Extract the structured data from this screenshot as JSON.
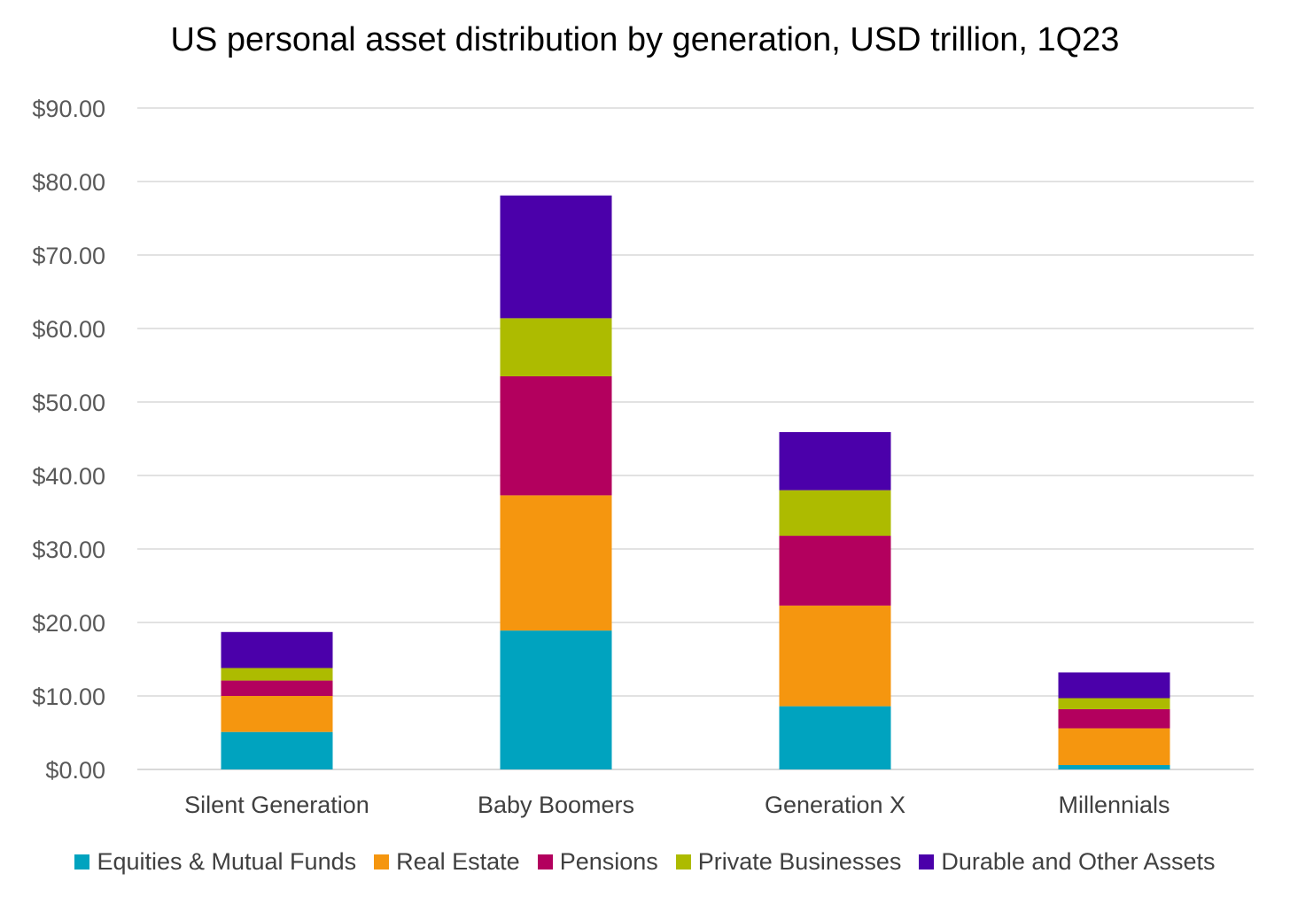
{
  "chart_data": {
    "type": "bar",
    "stacked": true,
    "title": "US personal asset distribution by generation, USD trillion, 1Q23",
    "xlabel": "",
    "ylabel": "",
    "ylim": [
      0,
      90
    ],
    "yticks": [
      0,
      10,
      20,
      30,
      40,
      50,
      60,
      70,
      80,
      90
    ],
    "ytick_labels": [
      "$0.00",
      "$10.00",
      "$20.00",
      "$30.00",
      "$40.00",
      "$50.00",
      "$60.00",
      "$70.00",
      "$80.00",
      "$90.00"
    ],
    "grid": true,
    "legend_position": "bottom",
    "categories": [
      "Silent Generation",
      "Baby Boomers",
      "Generation X",
      "Millennials"
    ],
    "series": [
      {
        "name": "Equities & Mutual Funds",
        "color": "#00A3BF",
        "values": [
          5.1,
          18.9,
          8.6,
          0.6
        ]
      },
      {
        "name": "Real Estate",
        "color": "#F5960F",
        "values": [
          4.9,
          18.4,
          13.7,
          5.0
        ]
      },
      {
        "name": "Pensions",
        "color": "#B3005E",
        "values": [
          2.1,
          16.2,
          9.5,
          2.6
        ]
      },
      {
        "name": "Private Businesses",
        "color": "#ADBB00",
        "values": [
          1.7,
          7.9,
          6.2,
          1.5
        ]
      },
      {
        "name": "Durable and Other Assets",
        "color": "#4B00AA",
        "values": [
          4.9,
          16.7,
          7.9,
          3.5
        ]
      }
    ]
  }
}
